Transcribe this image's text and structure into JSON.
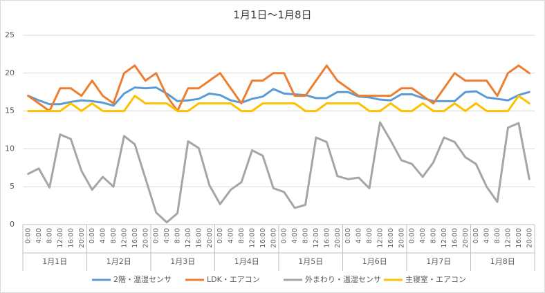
{
  "chart_data": {
    "type": "line",
    "title": "1月1日～1月8日",
    "categories": [
      "0:00",
      "4:00",
      "8:00",
      "12:00",
      "16:00",
      "20:00",
      "0:00",
      "4:00",
      "8:00",
      "12:00",
      "16:00",
      "20:00",
      "0:00",
      "4:00",
      "8:00",
      "12:00",
      "16:00",
      "20:00",
      "0:00",
      "4:00",
      "8:00",
      "12:00",
      "16:00",
      "20:00",
      "0:00",
      "4:00",
      "8:00",
      "12:00",
      "16:00",
      "20:00",
      "0:00",
      "4:00",
      "8:00",
      "12:00",
      "16:00",
      "20:00",
      "0:00",
      "4:00",
      "8:00",
      "12:00",
      "16:00",
      "20:00",
      "0:00",
      "4:00",
      "8:00",
      "12:00",
      "16:00",
      "20:00"
    ],
    "groups": [
      "1月1日",
      "1月2日",
      "1月3日",
      "1月4日",
      "1月5日",
      "1月6日",
      "1月7日",
      "1月8日"
    ],
    "series": [
      {
        "name": "2階・温湿センサ",
        "color": "#5b9bd5",
        "values": [
          17,
          16.4,
          15.9,
          15.9,
          16.2,
          16.4,
          16.3,
          16.1,
          15.7,
          17.3,
          18.1,
          18,
          18.1,
          17.3,
          16.3,
          16.4,
          16.6,
          17.3,
          17.1,
          16.4,
          16.1,
          16.6,
          16.9,
          17.9,
          17.3,
          17.2,
          17.1,
          16.7,
          16.7,
          17.5,
          17.5,
          16.9,
          16.8,
          16.5,
          16.4,
          17.2,
          17.2,
          16.7,
          16.3,
          16.3,
          16.3,
          17.5,
          17.6,
          16.8,
          16.6,
          16.4,
          17.1,
          17.5
        ]
      },
      {
        "name": "LDK・エアコン",
        "color": "#ed7d31",
        "values": [
          17,
          16,
          15,
          18,
          18,
          17,
          19,
          17,
          16,
          20,
          21,
          19,
          20,
          17,
          15,
          18,
          18,
          19,
          20,
          18,
          16,
          19,
          19,
          20,
          20,
          17,
          17,
          19,
          21,
          19,
          18,
          17,
          17,
          17,
          17,
          18,
          18,
          17,
          16,
          18,
          20,
          19,
          19,
          19,
          17,
          20,
          21,
          20
        ]
      },
      {
        "name": "外まわり・温湿センサ",
        "color": "#a5a5a5",
        "values": [
          6.7,
          7.4,
          4.9,
          11.9,
          11.3,
          7.1,
          4.6,
          6.3,
          5,
          11.7,
          10.6,
          6.1,
          1.6,
          0.3,
          1.5,
          11,
          10.1,
          5.2,
          2.7,
          4.6,
          5.6,
          9.8,
          9.1,
          4.8,
          4.3,
          2.2,
          2.6,
          11.5,
          10.9,
          6.4,
          6,
          6.2,
          4.8,
          13.5,
          11.1,
          8.5,
          8,
          6.3,
          8.2,
          11.5,
          10.9,
          8.9,
          8,
          5,
          3,
          12.8,
          13.4,
          6
        ]
      },
      {
        "name": "主寝室・エアコン",
        "color": "#ffc000",
        "values": [
          15,
          15,
          15,
          15,
          16,
          15,
          16,
          15,
          15,
          15,
          17,
          16,
          16,
          16,
          15,
          15,
          16,
          16,
          16,
          16,
          15,
          15,
          16,
          16,
          16,
          16,
          15,
          15,
          16,
          16,
          16,
          16,
          15,
          15,
          16,
          15,
          15,
          16,
          15,
          15,
          16,
          15,
          16,
          15,
          15,
          15,
          17,
          16
        ]
      }
    ],
    "ylim": [
      0,
      25
    ],
    "yticks": [
      0,
      5,
      10,
      15,
      20,
      25
    ],
    "grid": true
  }
}
